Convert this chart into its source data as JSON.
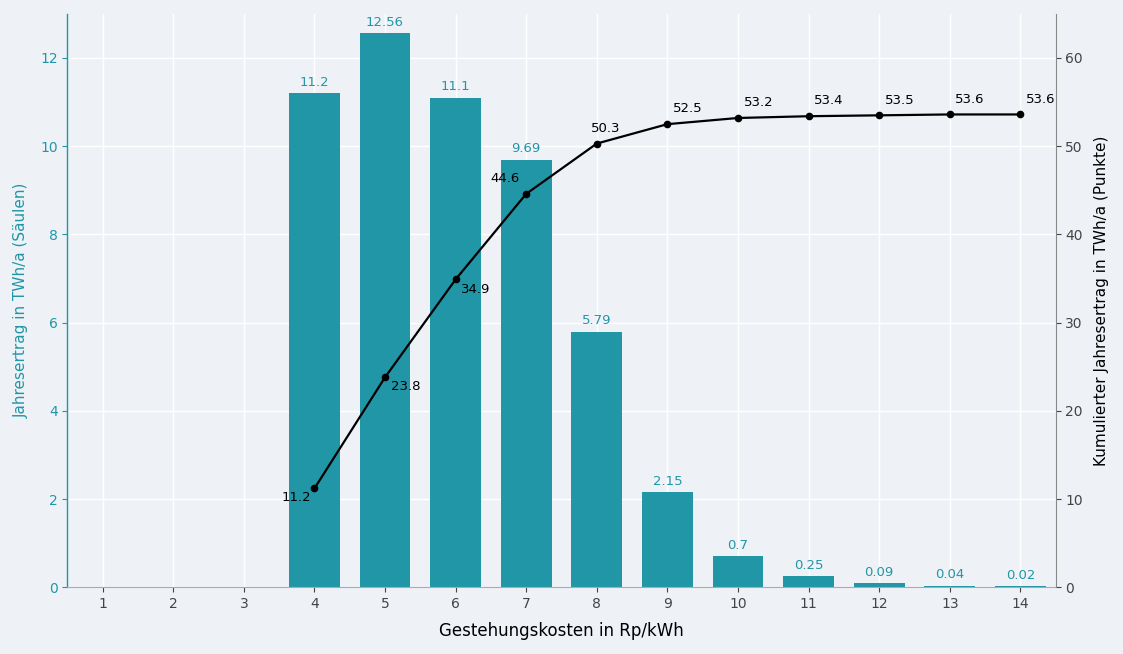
{
  "bar_x": [
    4,
    5,
    6,
    7,
    8,
    9,
    10,
    11,
    12,
    13,
    14
  ],
  "bar_values": [
    11.2,
    12.56,
    11.1,
    9.69,
    5.79,
    2.15,
    0.7,
    0.25,
    0.09,
    0.04,
    0.02
  ],
  "bar_labels": [
    "11.2",
    "12.56",
    "11.1",
    "9.69",
    "5.79",
    "2.15",
    "0.7",
    "0.25",
    "0.09",
    "0.04",
    "0.02"
  ],
  "bar_color": "#2196a6",
  "line_x": [
    4,
    5,
    6,
    7,
    8,
    9,
    10,
    11,
    12,
    13,
    14
  ],
  "line_values": [
    11.2,
    23.8,
    34.9,
    44.6,
    50.3,
    52.5,
    53.2,
    53.4,
    53.5,
    53.6,
    53.6
  ],
  "line_labels": [
    "11.2",
    "23.8",
    "34.9",
    "44.6",
    "50.3",
    "52.5",
    "53.2",
    "53.4",
    "53.5",
    "53.6",
    "53.6"
  ],
  "line_color": "#000000",
  "bar_label_color": "#2196a6",
  "ylabel_left": "Jahresertrag in TWh/a (Säulen)",
  "ylabel_right": "Kumulierter Jahresertrag in TWh/a (Punkte)",
  "xlabel": "Gestehungskosten in Rp/kWh",
  "xlim": [
    0.5,
    14.5
  ],
  "ylim_left": [
    0,
    13.0
  ],
  "ylim_right": [
    0,
    65.0
  ],
  "xticks": [
    1,
    2,
    3,
    4,
    5,
    6,
    7,
    8,
    9,
    10,
    11,
    12,
    13,
    14
  ],
  "yticks_left": [
    0,
    2,
    4,
    6,
    8,
    10,
    12
  ],
  "yticks_right": [
    0,
    10,
    20,
    30,
    40,
    50,
    60
  ],
  "background_color": "#eef2f7",
  "grid_color": "#ffffff",
  "left_ylabel_color": "#2196a6",
  "bar_width": 0.72,
  "line_label_offsets": {
    "4": [
      -0.05,
      -1.8,
      "right"
    ],
    "5": [
      0.08,
      -1.8,
      "left"
    ],
    "6": [
      0.08,
      -1.9,
      "left"
    ],
    "7": [
      -0.1,
      1.0,
      "right"
    ],
    "8": [
      -0.08,
      1.0,
      "left"
    ],
    "9": [
      0.08,
      1.0,
      "left"
    ],
    "10": [
      0.08,
      1.0,
      "left"
    ],
    "11": [
      0.08,
      1.0,
      "left"
    ],
    "12": [
      0.08,
      1.0,
      "left"
    ],
    "13": [
      0.08,
      1.0,
      "left"
    ],
    "14": [
      0.08,
      1.0,
      "left"
    ]
  }
}
